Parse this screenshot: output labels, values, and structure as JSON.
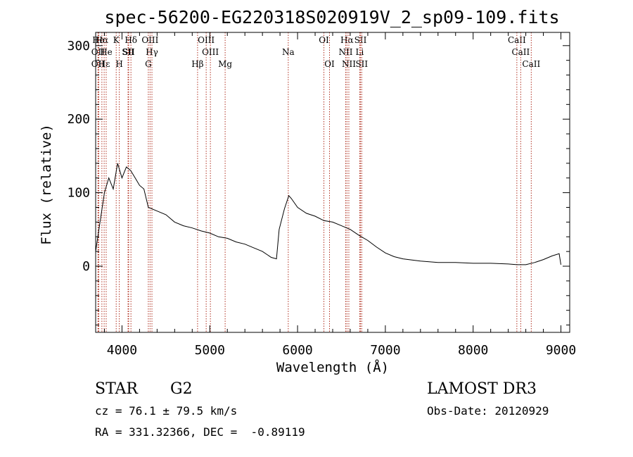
{
  "chart_data": {
    "type": "line",
    "title": "spec-56200-EG220318S020919V_2_sp09-109.fits",
    "xlabel": "Wavelength (Å)",
    "ylabel": "Flux (relative)",
    "xlim": [
      3700,
      9100
    ],
    "ylim": [
      -90,
      318
    ],
    "xticks": [
      4000,
      5000,
      6000,
      7000,
      8000,
      9000
    ],
    "yticks": [
      0,
      100,
      200,
      300
    ],
    "series": [
      {
        "name": "flux",
        "x": [
          3700,
          3750,
          3800,
          3850,
          3900,
          3950,
          4000,
          4050,
          4100,
          4150,
          4200,
          4250,
          4300,
          4400,
          4500,
          4600,
          4700,
          4800,
          4900,
          5000,
          5100,
          5200,
          5300,
          5400,
          5500,
          5600,
          5700,
          5760,
          5790,
          5850,
          5900,
          5930,
          6000,
          6100,
          6200,
          6300,
          6400,
          6500,
          6600,
          6700,
          6800,
          6900,
          7000,
          7100,
          7200,
          7400,
          7600,
          7800,
          8000,
          8200,
          8400,
          8500,
          8600,
          8700,
          8800,
          8900,
          8980,
          9000
        ],
        "y": [
          20,
          60,
          100,
          120,
          105,
          140,
          120,
          135,
          130,
          120,
          110,
          105,
          80,
          75,
          70,
          60,
          55,
          52,
          48,
          45,
          40,
          38,
          33,
          30,
          25,
          20,
          12,
          10,
          50,
          78,
          96,
          92,
          80,
          72,
          68,
          62,
          60,
          55,
          50,
          42,
          35,
          26,
          18,
          13,
          10,
          7,
          5,
          5,
          4,
          4,
          3,
          2,
          2,
          5,
          9,
          14,
          17,
          2
        ]
      }
    ],
    "lines": [
      {
        "label": "Hα",
        "w": 3736,
        "row": 1
      },
      {
        "label": "OII",
        "w": 3727,
        "row": 2
      },
      {
        "label": "OII",
        "w": 3727,
        "row": 3
      },
      {
        "label": "Hα",
        "w": 3771,
        "row": 1
      },
      {
        "label": "Hε",
        "w": 3797,
        "row": 3
      },
      {
        "label": "He",
        "w": 3820,
        "row": 2
      },
      {
        "label": "K",
        "w": 3934,
        "row": 1
      },
      {
        "label": "H",
        "w": 3969,
        "row": 3
      },
      {
        "label": "SII",
        "w": 4069,
        "row": 2
      },
      {
        "label": "Hδ",
        "w": 4102,
        "row": 1
      },
      {
        "label": "SII",
        "w": 4076,
        "row": 2
      },
      {
        "label": "OIII",
        "w": 4320,
        "row": 1
      },
      {
        "label": "Hγ",
        "w": 4341,
        "row": 2
      },
      {
        "label": "G",
        "w": 4300,
        "row": 3
      },
      {
        "label": "Hβ",
        "w": 4861,
        "row": 3
      },
      {
        "label": "OIII",
        "w": 4959,
        "row": 1
      },
      {
        "label": "OIII",
        "w": 5007,
        "row": 2
      },
      {
        "label": "Mg",
        "w": 5175,
        "row": 3
      },
      {
        "label": "Na",
        "w": 5894,
        "row": 2
      },
      {
        "label": "OI",
        "w": 6300,
        "row": 1
      },
      {
        "label": "OI",
        "w": 6364,
        "row": 3
      },
      {
        "label": "Hα",
        "w": 6563,
        "row": 1
      },
      {
        "label": "NII",
        "w": 6548,
        "row": 2
      },
      {
        "label": "NII",
        "w": 6584,
        "row": 3
      },
      {
        "label": "SII",
        "w": 6717,
        "row": 1
      },
      {
        "label": "Li",
        "w": 6708,
        "row": 2
      },
      {
        "label": "SII",
        "w": 6731,
        "row": 3
      },
      {
        "label": "CaII",
        "w": 8498,
        "row": 1
      },
      {
        "label": "CaII",
        "w": 8542,
        "row": 2
      },
      {
        "label": "CaII",
        "w": 8662,
        "row": 3
      }
    ]
  },
  "info": {
    "object_class": "STAR",
    "subclass": "G2",
    "cz_line": "cz = 76.1 ± 79.5 km/s",
    "coords_line": "RA = 331.32366, DEC =  -0.89119",
    "survey": "LAMOST DR3",
    "obs_date_line": "Obs-Date: 20120929"
  },
  "colors": {
    "line_marker": "#b03020",
    "spectrum": "#000000"
  }
}
